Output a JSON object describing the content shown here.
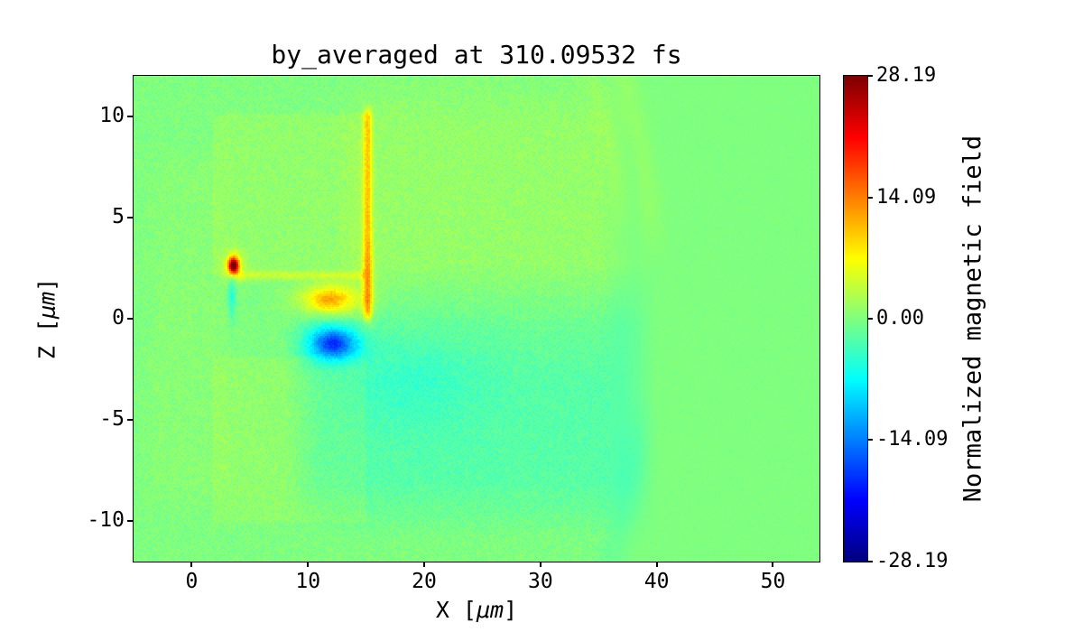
{
  "figure": {
    "background": "#ffffff"
  },
  "chart_data": {
    "type": "heatmap",
    "title": "by_averaged at 310.09532 fs",
    "xlabel": {
      "pre": "X [",
      "math": "μm",
      "post": "]"
    },
    "ylabel": {
      "pre": "Z [",
      "math": "μm",
      "post": "]"
    },
    "xlim": [
      -5,
      54
    ],
    "ylim": [
      -12,
      12
    ],
    "xticks": [
      0,
      10,
      20,
      30,
      40,
      50
    ],
    "yticks": [
      -10,
      -5,
      0,
      5,
      10
    ],
    "colormap": "jet",
    "background_value": 0,
    "noise_amplitude": 1.1,
    "colorbar": {
      "label": "Normalized magnetic field",
      "vmin": -28.19,
      "vmax": 28.19,
      "ticks": [
        {
          "label": "28.19",
          "value": 28.19
        },
        {
          "label": "14.09",
          "value": 14.09
        },
        {
          "label": "0.00",
          "value": 0.0
        },
        {
          "label": "-14.09",
          "value": -14.09
        },
        {
          "label": "-28.19",
          "value": -28.19
        }
      ]
    },
    "features": [
      {
        "type": "rect",
        "name": "upper-target-block",
        "x0": 1.9,
        "x1": 14.9,
        "z0": 2.2,
        "z1": 10.05,
        "value": 1.0,
        "soft": 0.15
      },
      {
        "type": "rect",
        "name": "lower-target-block",
        "x0": 1.9,
        "x1": 14.9,
        "z0": -10.0,
        "z1": -2.0,
        "value": 0.9,
        "soft": 0.15
      },
      {
        "type": "rect",
        "name": "left-haze",
        "x0": -2.6,
        "x1": 1.9,
        "z0": -8.0,
        "z1": 7.0,
        "value": 0.5,
        "soft": 2.0
      },
      {
        "type": "rect",
        "name": "upper-right-haze",
        "x0": 15.0,
        "x1": 35.0,
        "z0": 0.0,
        "z1": 9.5,
        "value": 1.2,
        "soft": 3.0
      },
      {
        "type": "rect",
        "name": "lower-right-haze",
        "x0": 11.0,
        "x1": 37.0,
        "z0": -8.0,
        "z1": -0.2,
        "value": -2.2,
        "soft": 3.0
      },
      {
        "type": "gaussian",
        "name": "lower-cyan-pool",
        "x": 19.0,
        "z": -3.0,
        "rx": 6.0,
        "rz": 2.5,
        "value": -1.8
      },
      {
        "type": "gaussian",
        "name": "orange-lobe",
        "x": 12.0,
        "z": 0.95,
        "rx": 2.6,
        "rz": 0.8,
        "value": 10.5
      },
      {
        "type": "gaussian",
        "name": "orange-core",
        "x": 11.6,
        "z": 0.9,
        "rx": 1.3,
        "rz": 0.5,
        "value": 3.0
      },
      {
        "type": "gaussian",
        "name": "blue-lobe",
        "x": 12.2,
        "z": -1.25,
        "rx": 2.3,
        "rz": 0.85,
        "value": -13.0
      },
      {
        "type": "gaussian",
        "name": "blue-core",
        "x": 12.2,
        "z": -1.2,
        "rx": 1.2,
        "rz": 0.55,
        "value": -3.5
      },
      {
        "type": "gaussian",
        "name": "hotspot-halo",
        "x": 3.6,
        "z": 2.6,
        "rx": 0.85,
        "rz": 0.75,
        "value": 6.0
      },
      {
        "type": "gaussian",
        "name": "hotspot",
        "x": 3.6,
        "z": 2.62,
        "rx": 0.42,
        "rz": 0.38,
        "value": 27.0
      },
      {
        "type": "gaussian",
        "name": "cyan-wisp",
        "x": 3.45,
        "z": 1.2,
        "rx": 0.35,
        "rz": 1.1,
        "value": -5.0
      },
      {
        "type": "vline",
        "name": "orange-edge",
        "x": 15.15,
        "w": 0.38,
        "z0": 0.3,
        "z1": 10.0,
        "value": 9.0,
        "soft": 0.6
      },
      {
        "type": "gaussian",
        "name": "orange-edge-boost",
        "x": 15.15,
        "z": 1.8,
        "rx": 0.55,
        "rz": 2.2,
        "value": 3.0
      },
      {
        "type": "hline",
        "name": "block-bottom-line",
        "z": 2.12,
        "w": 0.22,
        "x0": 4.2,
        "x1": 14.8,
        "value": 3.5,
        "soft": 0.4
      },
      {
        "type": "arc",
        "name": "wavefront-arc-upper",
        "x": 13.0,
        "z": 0.0,
        "r": 27.0,
        "w": 1.0,
        "a0": 5,
        "a1": 70,
        "value": 1.0
      },
      {
        "type": "arc",
        "name": "wavefront-arc-upper2",
        "x": 13.0,
        "z": 0.0,
        "r": 24.5,
        "w": 0.8,
        "a0": 10,
        "a1": 65,
        "value": 0.7
      },
      {
        "type": "arc",
        "name": "wavefront-arc-lower",
        "x": 13.0,
        "z": 0.0,
        "r": 26.0,
        "w": 1.2,
        "a0": -55,
        "a1": -8,
        "value": -1.0
      }
    ]
  }
}
